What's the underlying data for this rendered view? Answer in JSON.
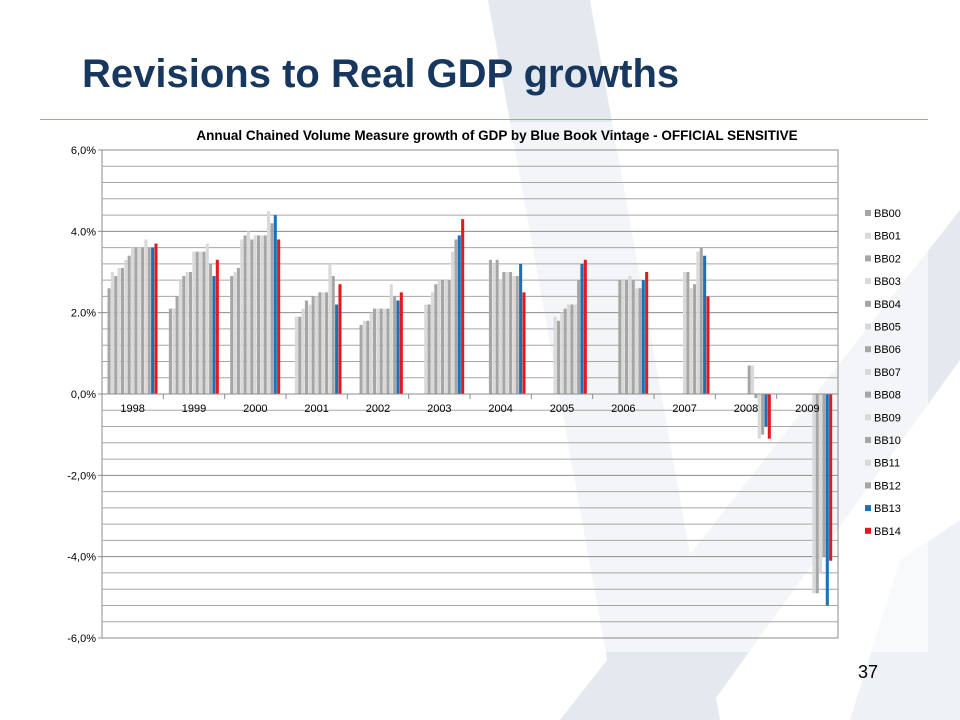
{
  "slide": {
    "title": "Revisions to Real GDP growths",
    "page_number": "37",
    "colors": {
      "title": "#17375e",
      "rule": "#9bbb59",
      "watermark": "#dde3ea"
    }
  },
  "chart_data": {
    "type": "bar",
    "title": "Annual Chained Volume Measure growth of GDP by Blue Book Vintage - OFFICIAL SENSITIVE",
    "xlabel": "",
    "ylabel": "",
    "ylim": [
      -6.0,
      6.0
    ],
    "y_ticks": [
      "6,0%",
      "4.0%",
      "2.0%",
      "0,0%",
      "-2,0%",
      "-4,0%",
      "-6,0%"
    ],
    "y_tick_values": [
      6,
      4,
      2,
      0,
      -2,
      -4,
      -6
    ],
    "grid": true,
    "legend_position": "right",
    "categories": [
      "1998",
      "1999",
      "2000",
      "2001",
      "2002",
      "2003",
      "2004",
      "2005",
      "2006",
      "2007",
      "2008",
      "2009"
    ],
    "series": [
      {
        "name": "BB00",
        "color": "#a6a6a6",
        "values": [
          2.6,
          2.1,
          2.9,
          null,
          null,
          null,
          null,
          null,
          null,
          null,
          null,
          null
        ]
      },
      {
        "name": "BB01",
        "color": "#d9d9d9",
        "values": [
          3.0,
          2.1,
          3.0,
          1.9,
          null,
          null,
          null,
          null,
          null,
          null,
          null,
          null
        ]
      },
      {
        "name": "BB02",
        "color": "#a6a6a6",
        "values": [
          2.9,
          2.4,
          3.1,
          1.9,
          1.7,
          null,
          null,
          null,
          null,
          null,
          null,
          null
        ]
      },
      {
        "name": "BB03",
        "color": "#d9d9d9",
        "values": [
          3.1,
          2.8,
          3.8,
          2.1,
          1.8,
          2.2,
          null,
          null,
          null,
          null,
          null,
          null
        ]
      },
      {
        "name": "BB04",
        "color": "#a6a6a6",
        "values": [
          3.1,
          2.9,
          3.9,
          2.3,
          1.8,
          2.2,
          3.3,
          null,
          null,
          null,
          null,
          null
        ]
      },
      {
        "name": "BB05",
        "color": "#d9d9d9",
        "values": [
          3.3,
          3.0,
          4.0,
          2.2,
          2.0,
          2.5,
          3.2,
          1.9,
          null,
          null,
          null,
          null
        ]
      },
      {
        "name": "BB06",
        "color": "#a6a6a6",
        "values": [
          3.4,
          3.0,
          3.8,
          2.4,
          2.1,
          2.7,
          3.3,
          1.8,
          2.8,
          null,
          null,
          null
        ]
      },
      {
        "name": "BB07",
        "color": "#d9d9d9",
        "values": [
          3.6,
          3.5,
          3.9,
          2.4,
          2.1,
          2.8,
          2.8,
          2.0,
          2.8,
          3.0,
          null,
          null
        ]
      },
      {
        "name": "BB08",
        "color": "#a6a6a6",
        "values": [
          3.6,
          3.5,
          3.9,
          2.5,
          2.1,
          2.8,
          3.0,
          2.1,
          2.8,
          3.0,
          0.7,
          null
        ]
      },
      {
        "name": "BB09",
        "color": "#d9d9d9",
        "values": [
          3.6,
          3.5,
          3.9,
          2.5,
          2.1,
          2.8,
          3.0,
          2.2,
          2.9,
          2.6,
          0.7,
          -4.9
        ]
      },
      {
        "name": "BB10",
        "color": "#a6a6a6",
        "values": [
          3.6,
          3.5,
          3.9,
          2.5,
          2.1,
          2.8,
          3.0,
          2.2,
          2.8,
          2.7,
          -0.1,
          -4.9
        ]
      },
      {
        "name": "BB11",
        "color": "#d9d9d9",
        "values": [
          3.8,
          3.7,
          4.5,
          3.2,
          2.7,
          3.5,
          2.9,
          2.2,
          2.6,
          3.5,
          -1.1,
          -4.4
        ]
      },
      {
        "name": "BB12",
        "color": "#a6a6a6",
        "values": [
          3.6,
          3.2,
          4.2,
          2.9,
          2.4,
          3.8,
          2.9,
          2.8,
          2.6,
          3.6,
          -1.0,
          -4.0
        ]
      },
      {
        "name": "BB13",
        "color": "#1f6fb4",
        "values": [
          3.6,
          2.9,
          4.4,
          2.2,
          2.3,
          3.9,
          3.2,
          3.2,
          2.8,
          3.4,
          -0.8,
          -5.2
        ]
      },
      {
        "name": "BB14",
        "color": "#e31a1c",
        "values": [
          3.7,
          3.3,
          3.8,
          2.7,
          2.5,
          4.3,
          2.5,
          3.3,
          3.0,
          2.4,
          -1.1,
          -4.1
        ]
      }
    ]
  }
}
